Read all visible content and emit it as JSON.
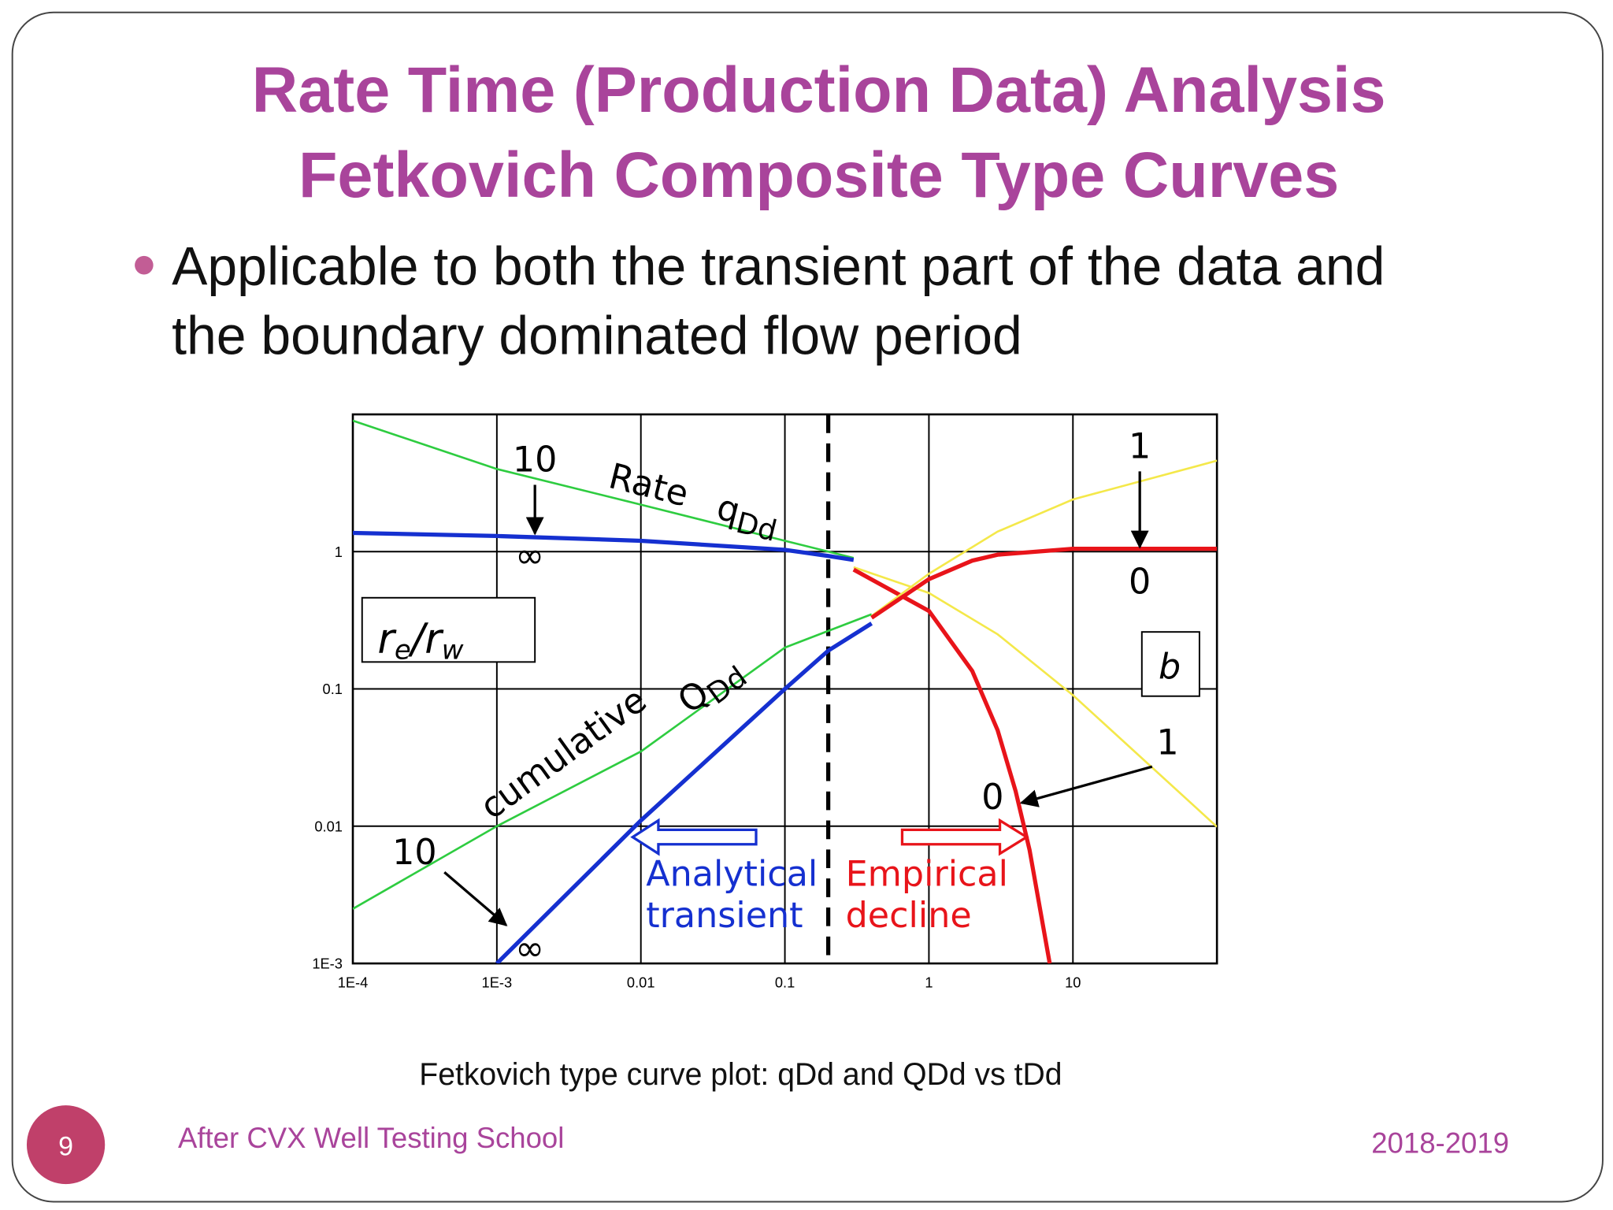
{
  "slide": {
    "title": [
      "Rate Time (Production Data) Analysis",
      "Fetkovich Composite Type Curves"
    ],
    "bullet": [
      "Applicable to both the transient part of the data and",
      "the boundary dominated flow period"
    ],
    "caption": "Fetkovich type curve plot: qDd and QDd vs tDd",
    "footer": "After CVX Well Testing School",
    "page_number": 9,
    "date": "2018-2019"
  },
  "chart_data": {
    "type": "line",
    "log_x": true,
    "log_y": true,
    "grid": true,
    "xlim": [
      0.0001,
      100
    ],
    "ylim": [
      0.001,
      10
    ],
    "xticks": [
      {
        "value": 0.0001,
        "label": "1E-4"
      },
      {
        "value": 0.001,
        "label": "1E-3"
      },
      0.01,
      0.1,
      1,
      10
    ],
    "yticks": [
      {
        "value": 0.001,
        "label": "1E-3"
      },
      0.01,
      0.1,
      1
    ],
    "divider_x": 0.2,
    "series": [
      {
        "color": "#2ecc40",
        "x": [
          0.0001,
          0.001,
          0.01,
          0.1,
          0.3
        ],
        "values": [
          9,
          4,
          2.2,
          1.2,
          0.9
        ]
      },
      {
        "color": "#1530d0",
        "x": [
          0.0001,
          0.001,
          0.01,
          0.1,
          0.2,
          0.3
        ],
        "values": [
          1.37,
          1.3,
          1.2,
          1.03,
          0.93,
          0.87
        ]
      },
      {
        "color": "#f4e84a",
        "x": [
          0.3,
          1,
          3,
          10,
          100
        ],
        "values": [
          0.77,
          0.5,
          0.25,
          0.09,
          0.0099
        ]
      },
      {
        "color": "#e8141a",
        "x": [
          0.3,
          1,
          2,
          3,
          4,
          5,
          6.9
        ],
        "values": [
          0.74,
          0.37,
          0.135,
          0.05,
          0.018,
          0.0067,
          0.001
        ]
      },
      {
        "color": "#2ecc40",
        "x": [
          0.0001,
          0.001,
          0.01,
          0.1,
          0.4
        ],
        "values": [
          0.0025,
          0.01,
          0.035,
          0.2,
          0.35
        ]
      },
      {
        "color": "#1530d0",
        "x": [
          0.001,
          0.01,
          0.1,
          0.2,
          0.4
        ],
        "values": [
          0.001,
          0.011,
          0.1,
          0.19,
          0.3
        ]
      },
      {
        "color": "#f4e84a",
        "x": [
          0.4,
          1,
          3,
          10,
          100
        ],
        "values": [
          0.34,
          0.69,
          1.4,
          2.4,
          4.6
        ]
      },
      {
        "color": "#e8141a",
        "x": [
          0.4,
          1,
          2,
          3,
          10,
          100
        ],
        "values": [
          0.33,
          0.63,
          0.86,
          0.95,
          1.05,
          1.05
        ]
      }
    ],
    "annotations": [
      {
        "text": "10"
      },
      {
        "text": "∞"
      },
      {
        "text": "Rate"
      },
      {
        "text": "q",
        "sub": "Dd"
      },
      {
        "text": "cumulative"
      },
      {
        "text": "Q",
        "sub": "Dd"
      },
      {
        "text": "1"
      },
      {
        "text": "0"
      },
      {
        "text": "b"
      },
      {
        "text": "1"
      },
      {
        "text": "0"
      },
      {
        "text": "10"
      },
      {
        "text": "∞"
      },
      {
        "text": "Analytical"
      },
      {
        "text": "transient"
      },
      {
        "text": "Empirical"
      },
      {
        "text": "decline"
      }
    ],
    "box_label": [
      "r",
      "e",
      "/r",
      "w"
    ]
  }
}
